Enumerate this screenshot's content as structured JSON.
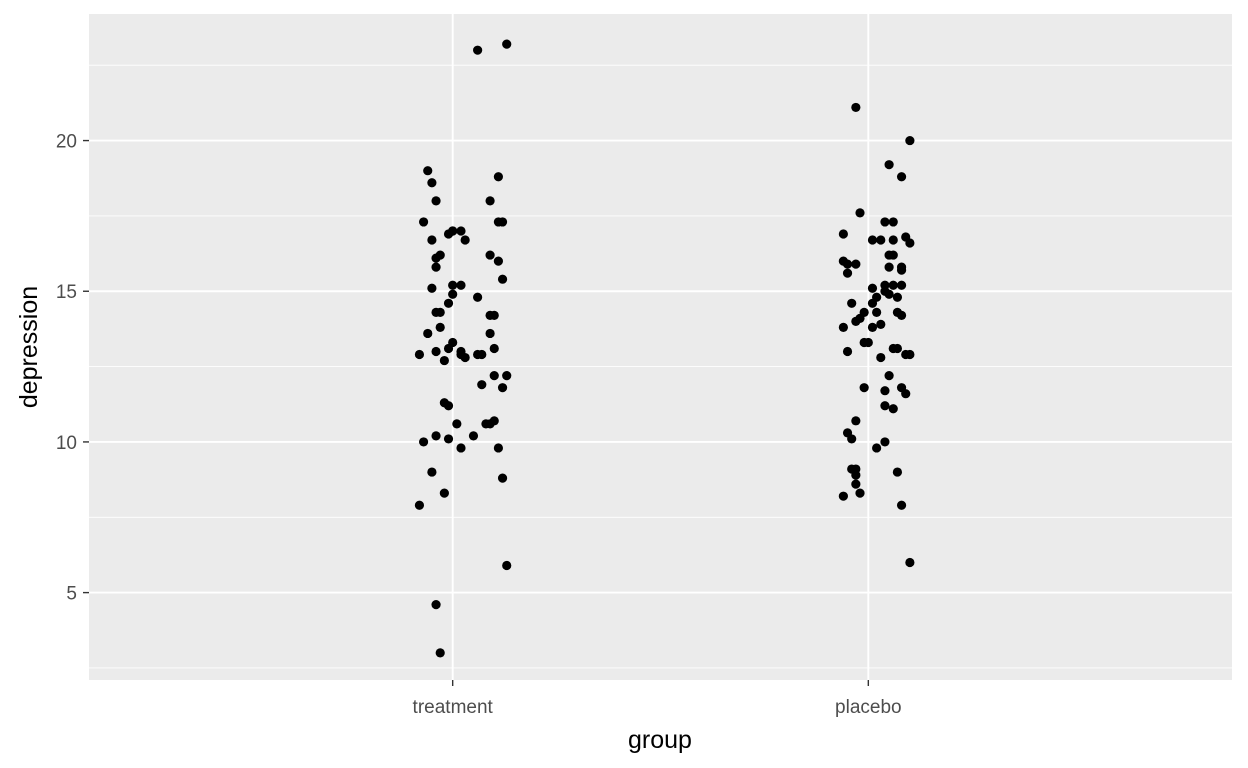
{
  "chart_data": {
    "type": "scatter",
    "title": "",
    "xlabel": "group",
    "ylabel": "depression",
    "categories": [
      "treatment",
      "placebo"
    ],
    "ylim": [
      2.1,
      24.2
    ],
    "yticks": [
      5,
      10,
      15,
      20
    ],
    "grid": true,
    "legend": "none",
    "colors": {
      "panel": "#ebebeb",
      "grid": "#ffffff",
      "point": "#000000"
    },
    "series": [
      {
        "category": "treatment",
        "points": [
          [
            0.06,
            23.0
          ],
          [
            0.13,
            23.2
          ],
          [
            -0.06,
            19.0
          ],
          [
            -0.05,
            18.6
          ],
          [
            -0.04,
            18.0
          ],
          [
            0.11,
            18.8
          ],
          [
            -0.07,
            17.3
          ],
          [
            -0.05,
            16.7
          ],
          [
            -0.04,
            16.1
          ],
          [
            -0.03,
            16.2
          ],
          [
            -0.01,
            16.9
          ],
          [
            0.0,
            17.0
          ],
          [
            0.02,
            17.0
          ],
          [
            0.0,
            17.0
          ],
          [
            0.03,
            16.7
          ],
          [
            0.09,
            18.0
          ],
          [
            0.11,
            17.3
          ],
          [
            0.12,
            17.3
          ],
          [
            0.09,
            16.2
          ],
          [
            0.11,
            16.0
          ],
          [
            -0.04,
            15.8
          ],
          [
            -0.05,
            15.1
          ],
          [
            0.12,
            15.4
          ],
          [
            0.0,
            15.2
          ],
          [
            0.02,
            15.2
          ],
          [
            0.06,
            14.8
          ],
          [
            0.0,
            14.9
          ],
          [
            -0.01,
            14.6
          ],
          [
            -0.04,
            14.3
          ],
          [
            -0.03,
            14.3
          ],
          [
            0.09,
            14.2
          ],
          [
            0.1,
            14.2
          ],
          [
            -0.06,
            13.6
          ],
          [
            -0.03,
            13.8
          ],
          [
            0.0,
            13.3
          ],
          [
            0.09,
            13.6
          ],
          [
            -0.08,
            12.9
          ],
          [
            -0.04,
            13.0
          ],
          [
            -0.02,
            12.7
          ],
          [
            -0.01,
            13.1
          ],
          [
            0.02,
            13.0
          ],
          [
            0.03,
            12.8
          ],
          [
            0.02,
            12.9
          ],
          [
            0.06,
            12.9
          ],
          [
            0.07,
            12.9
          ],
          [
            0.1,
            13.1
          ],
          [
            0.1,
            12.2
          ],
          [
            0.13,
            12.2
          ],
          [
            0.12,
            11.8
          ],
          [
            0.07,
            11.9
          ],
          [
            -0.02,
            11.3
          ],
          [
            -0.01,
            11.2
          ],
          [
            0.01,
            10.6
          ],
          [
            0.08,
            10.6
          ],
          [
            0.09,
            10.6
          ],
          [
            0.1,
            10.7
          ],
          [
            -0.07,
            10.0
          ],
          [
            -0.04,
            10.2
          ],
          [
            -0.01,
            10.1
          ],
          [
            0.02,
            9.8
          ],
          [
            0.05,
            10.2
          ],
          [
            0.11,
            9.8
          ],
          [
            -0.05,
            9.0
          ],
          [
            0.12,
            8.8
          ],
          [
            -0.02,
            8.3
          ],
          [
            -0.08,
            7.9
          ],
          [
            0.13,
            5.9
          ],
          [
            -0.04,
            4.6
          ],
          [
            -0.03,
            3.0
          ]
        ]
      },
      {
        "category": "placebo",
        "points": [
          [
            -0.03,
            21.1
          ],
          [
            0.1,
            20.0
          ],
          [
            0.05,
            19.2
          ],
          [
            0.08,
            18.8
          ],
          [
            -0.02,
            17.6
          ],
          [
            0.04,
            17.3
          ],
          [
            0.06,
            17.3
          ],
          [
            -0.06,
            16.9
          ],
          [
            0.06,
            16.7
          ],
          [
            0.09,
            16.8
          ],
          [
            0.1,
            16.6
          ],
          [
            0.03,
            16.7
          ],
          [
            0.01,
            16.7
          ],
          [
            0.05,
            16.2
          ],
          [
            0.06,
            16.2
          ],
          [
            -0.06,
            16.0
          ],
          [
            -0.05,
            15.9
          ],
          [
            -0.05,
            15.6
          ],
          [
            -0.03,
            15.9
          ],
          [
            0.05,
            15.8
          ],
          [
            0.08,
            15.8
          ],
          [
            0.08,
            15.7
          ],
          [
            0.06,
            15.2
          ],
          [
            0.08,
            15.2
          ],
          [
            0.01,
            15.1
          ],
          [
            0.04,
            15.2
          ],
          [
            0.04,
            15.0
          ],
          [
            0.05,
            14.9
          ],
          [
            0.07,
            14.8
          ],
          [
            0.02,
            14.8
          ],
          [
            0.01,
            14.6
          ],
          [
            -0.04,
            14.6
          ],
          [
            -0.01,
            14.3
          ],
          [
            -0.02,
            14.1
          ],
          [
            0.02,
            14.3
          ],
          [
            0.07,
            14.3
          ],
          [
            0.08,
            14.2
          ],
          [
            -0.03,
            14.0
          ],
          [
            -0.06,
            13.8
          ],
          [
            -0.01,
            13.3
          ],
          [
            0.0,
            13.3
          ],
          [
            0.01,
            13.8
          ],
          [
            0.03,
            13.9
          ],
          [
            -0.05,
            13.0
          ],
          [
            0.03,
            12.8
          ],
          [
            0.06,
            13.1
          ],
          [
            0.07,
            13.1
          ],
          [
            0.09,
            12.9
          ],
          [
            0.1,
            12.9
          ],
          [
            0.05,
            12.2
          ],
          [
            -0.01,
            11.8
          ],
          [
            0.04,
            11.7
          ],
          [
            0.08,
            11.8
          ],
          [
            0.09,
            11.6
          ],
          [
            0.04,
            11.2
          ],
          [
            0.06,
            11.1
          ],
          [
            -0.03,
            10.7
          ],
          [
            -0.05,
            10.3
          ],
          [
            -0.04,
            10.1
          ],
          [
            0.02,
            9.8
          ],
          [
            0.04,
            10.0
          ],
          [
            -0.04,
            9.1
          ],
          [
            -0.03,
            9.1
          ],
          [
            -0.03,
            8.9
          ],
          [
            -0.03,
            8.6
          ],
          [
            -0.02,
            8.3
          ],
          [
            0.07,
            9.0
          ],
          [
            -0.06,
            8.2
          ],
          [
            0.08,
            7.9
          ],
          [
            0.1,
            6.0
          ]
        ]
      }
    ]
  }
}
